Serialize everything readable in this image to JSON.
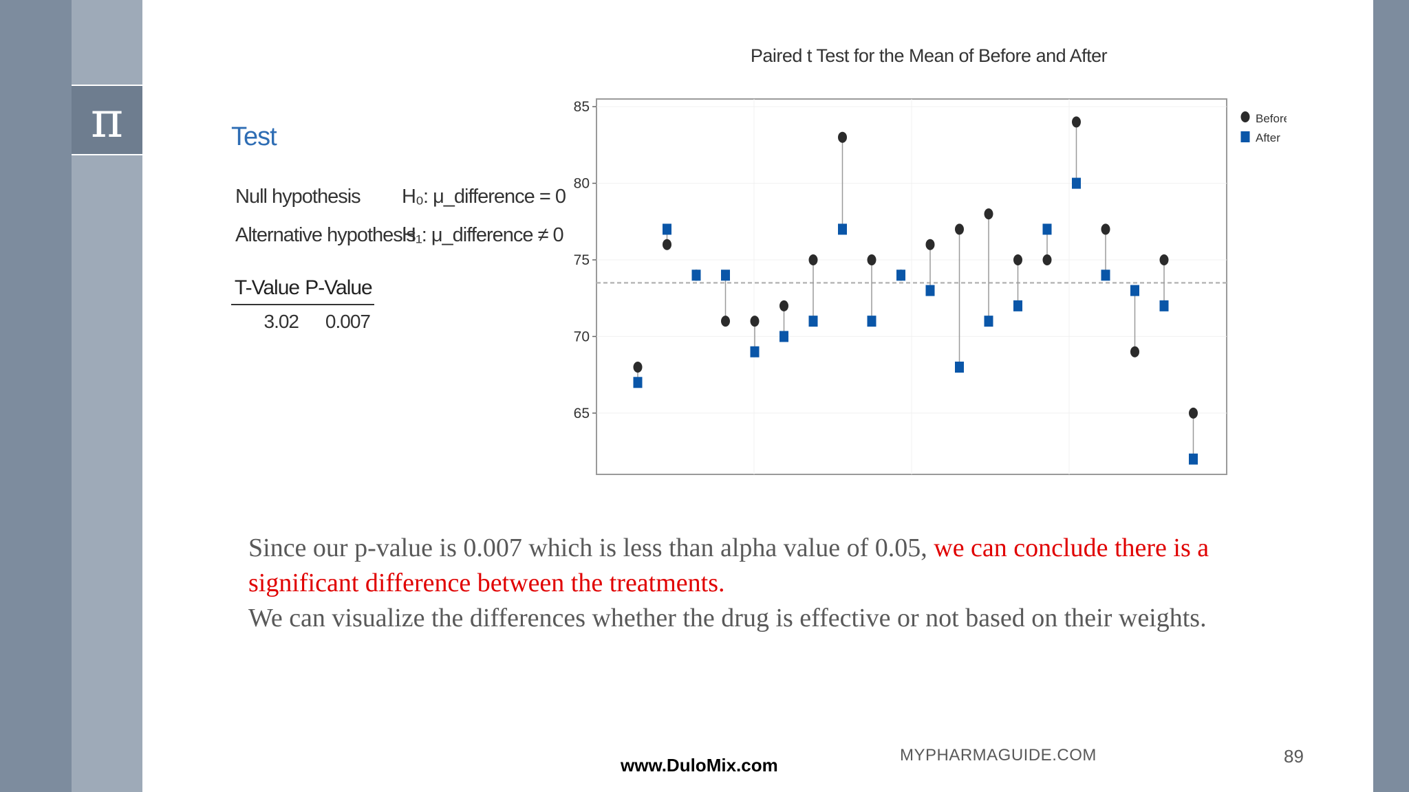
{
  "slide": {
    "pi_symbol": "π",
    "test_title": "Test",
    "null_label": "Null hypothesis",
    "null_value": "H₀: μ_difference = 0",
    "alt_label": "Alternative hypothesis",
    "alt_value": "H₁: μ_difference ≠ 0",
    "t_header": "T-Value",
    "p_header": "P-Value",
    "t_value": "3.02",
    "p_value": "0.007",
    "text_part1": " Since our p-value is 0.007 which is less than alpha value of 0.05, ",
    "text_red": "we can conclude there is a significant difference between the treatments.",
    "text_part2": "We can visualize the differences whether the drug is effective or not based on their weights.",
    "footer_site": "MYPHARMAGUIDE.COM",
    "page_number": "89",
    "watermark": "www.DuloMix.com"
  },
  "chart_data": {
    "type": "scatter",
    "title": "Paired t Test for the Mean of Before and After",
    "ylim": [
      61,
      85.5
    ],
    "yticks": [
      65,
      70,
      75,
      80,
      85
    ],
    "ytick_labels": [
      "65",
      "70",
      "75",
      "80",
      "85"
    ],
    "mean_line": 73.5,
    "grid": true,
    "legend_position": "top-right",
    "colors": {
      "before": "#2b2b2b",
      "after": "#0a56a8",
      "connector": "#9a9a9a",
      "mean": "#b8b8b8"
    },
    "series": [
      {
        "name": "Before",
        "marker": "circle",
        "values": [
          68,
          76,
          74,
          71,
          71,
          72,
          75,
          83,
          75,
          74,
          76,
          77,
          78,
          75,
          75,
          84,
          77,
          69,
          75,
          65
        ]
      },
      {
        "name": "After",
        "marker": "square",
        "values": [
          67,
          77,
          74,
          74,
          69,
          70,
          71,
          77,
          71,
          74,
          73,
          68,
          71,
          72,
          77,
          80,
          74,
          73,
          72,
          62
        ]
      }
    ]
  }
}
